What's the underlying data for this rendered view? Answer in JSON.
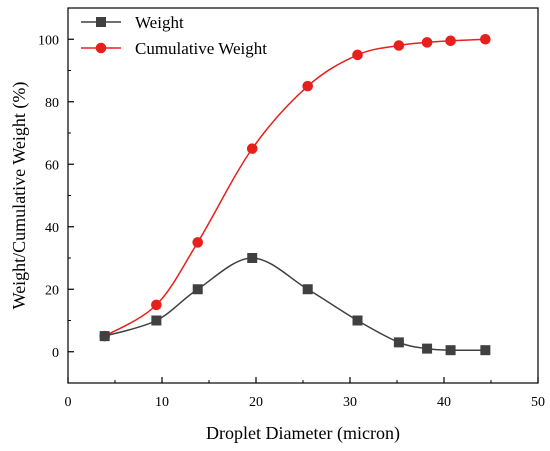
{
  "chart_data": {
    "type": "line",
    "title": "",
    "xlabel": "Droplet Diameter (micron)",
    "ylabel": "Weight/Cumulative Weight (%)",
    "xlim": [
      0,
      50
    ],
    "ylim": [
      -10,
      110
    ],
    "xticks": [
      0,
      10,
      20,
      30,
      40,
      50
    ],
    "yticks": [
      0,
      20,
      40,
      60,
      80,
      100
    ],
    "xtick_labels": [
      "0",
      "10",
      "20",
      "30",
      "40",
      "50"
    ],
    "ytick_labels": [
      "0",
      "20",
      "40",
      "60",
      "80",
      "100"
    ],
    "grid": false,
    "smooth": true,
    "legend_position": "top-left",
    "series": [
      {
        "name": "Weight",
        "color": "#404040",
        "marker": "square",
        "x": [
          3.9,
          9.4,
          13.8,
          19.6,
          25.5,
          30.8,
          35.2,
          38.2,
          40.7,
          44.4
        ],
        "y": [
          5,
          10,
          20,
          30,
          20,
          10,
          3,
          1,
          0.5,
          0.5
        ]
      },
      {
        "name": "Cumulative Weight",
        "color": "#e8201d",
        "marker": "circle",
        "x": [
          3.9,
          9.4,
          13.8,
          19.6,
          25.5,
          30.8,
          35.2,
          38.2,
          40.7,
          44.4
        ],
        "y": [
          5,
          15,
          35,
          65,
          85,
          95,
          98,
          99,
          99.5,
          100
        ]
      }
    ]
  }
}
